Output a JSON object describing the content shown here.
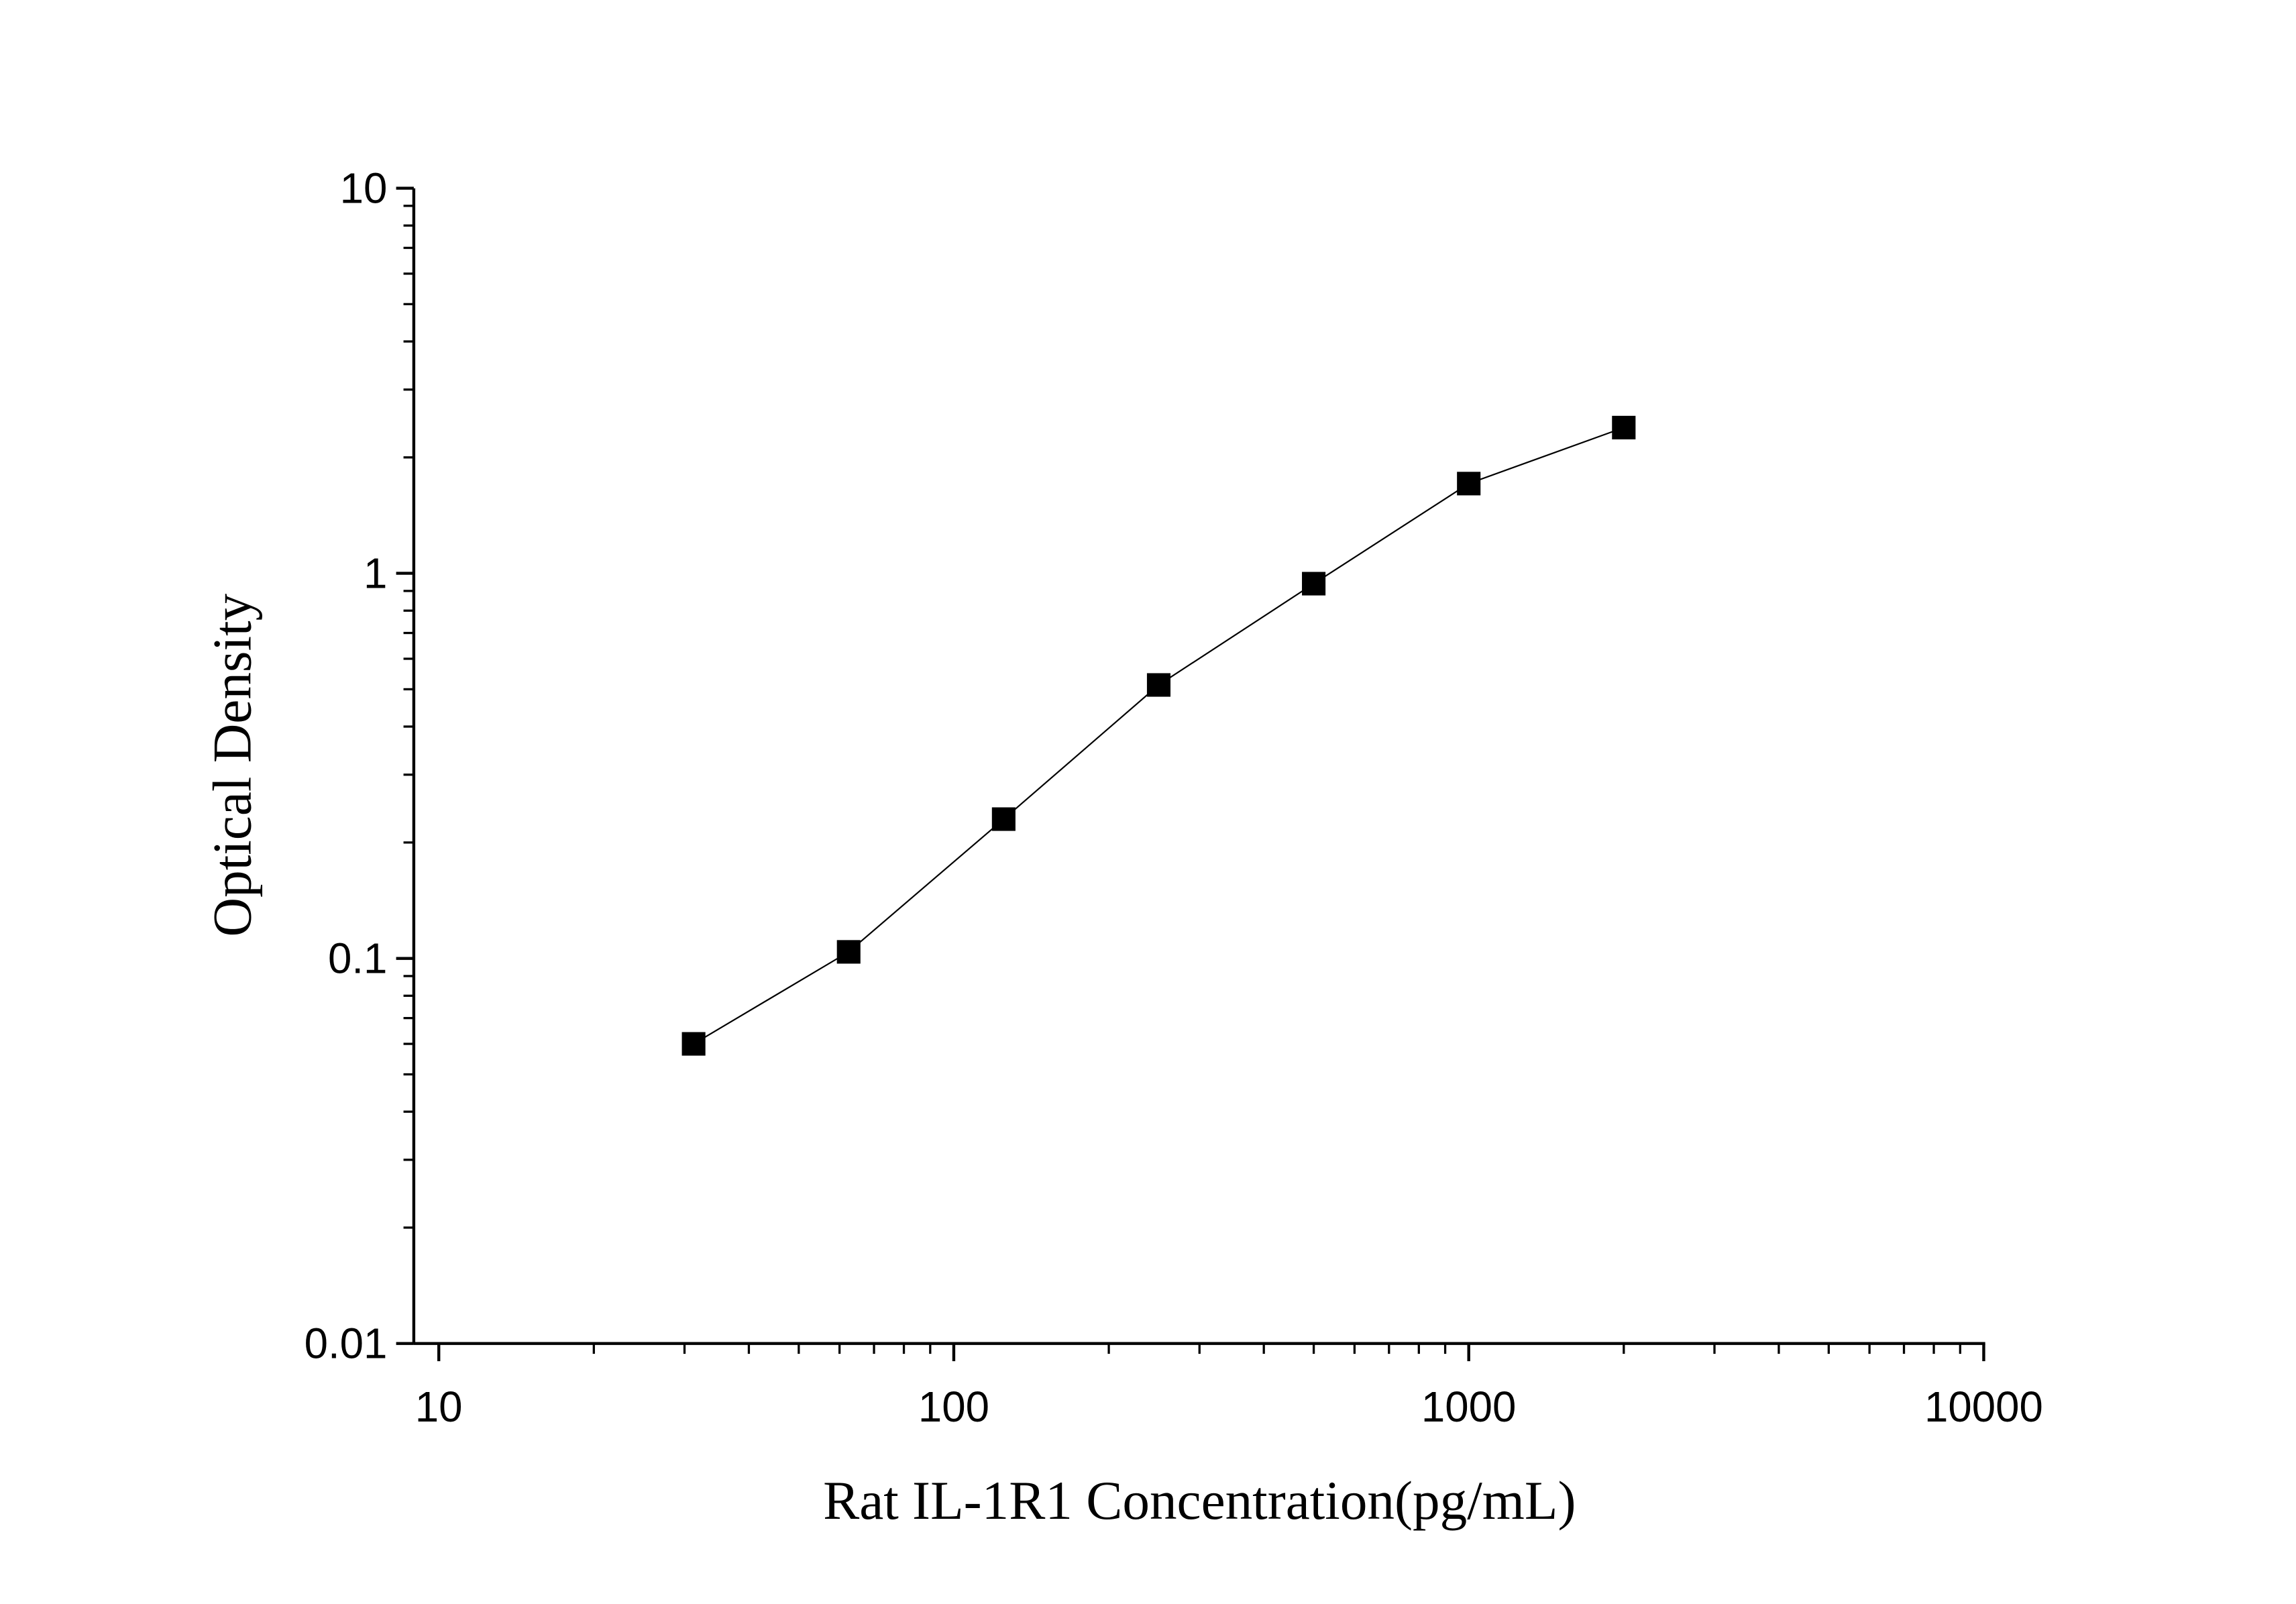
{
  "chart_data": {
    "type": "line",
    "title": "",
    "xlabel": "Rat IL-1R1 Concentration(pg/mL)",
    "ylabel": "Optical Density",
    "x_scale": "log",
    "y_scale": "log",
    "xlim": [
      10,
      10000
    ],
    "ylim": [
      0.01,
      10
    ],
    "x_ticks": [
      "10",
      "100",
      "1000",
      "10000"
    ],
    "y_ticks": [
      "0.01",
      "0.1",
      "1",
      "10"
    ],
    "grid": false,
    "marker": "square",
    "color": "#000000",
    "series": [
      {
        "x": [
          31.25,
          62.5,
          125,
          250,
          500,
          1000,
          2000
        ],
        "y": [
          0.06,
          0.104,
          0.23,
          0.513,
          0.94,
          1.71,
          2.39
        ]
      }
    ]
  }
}
